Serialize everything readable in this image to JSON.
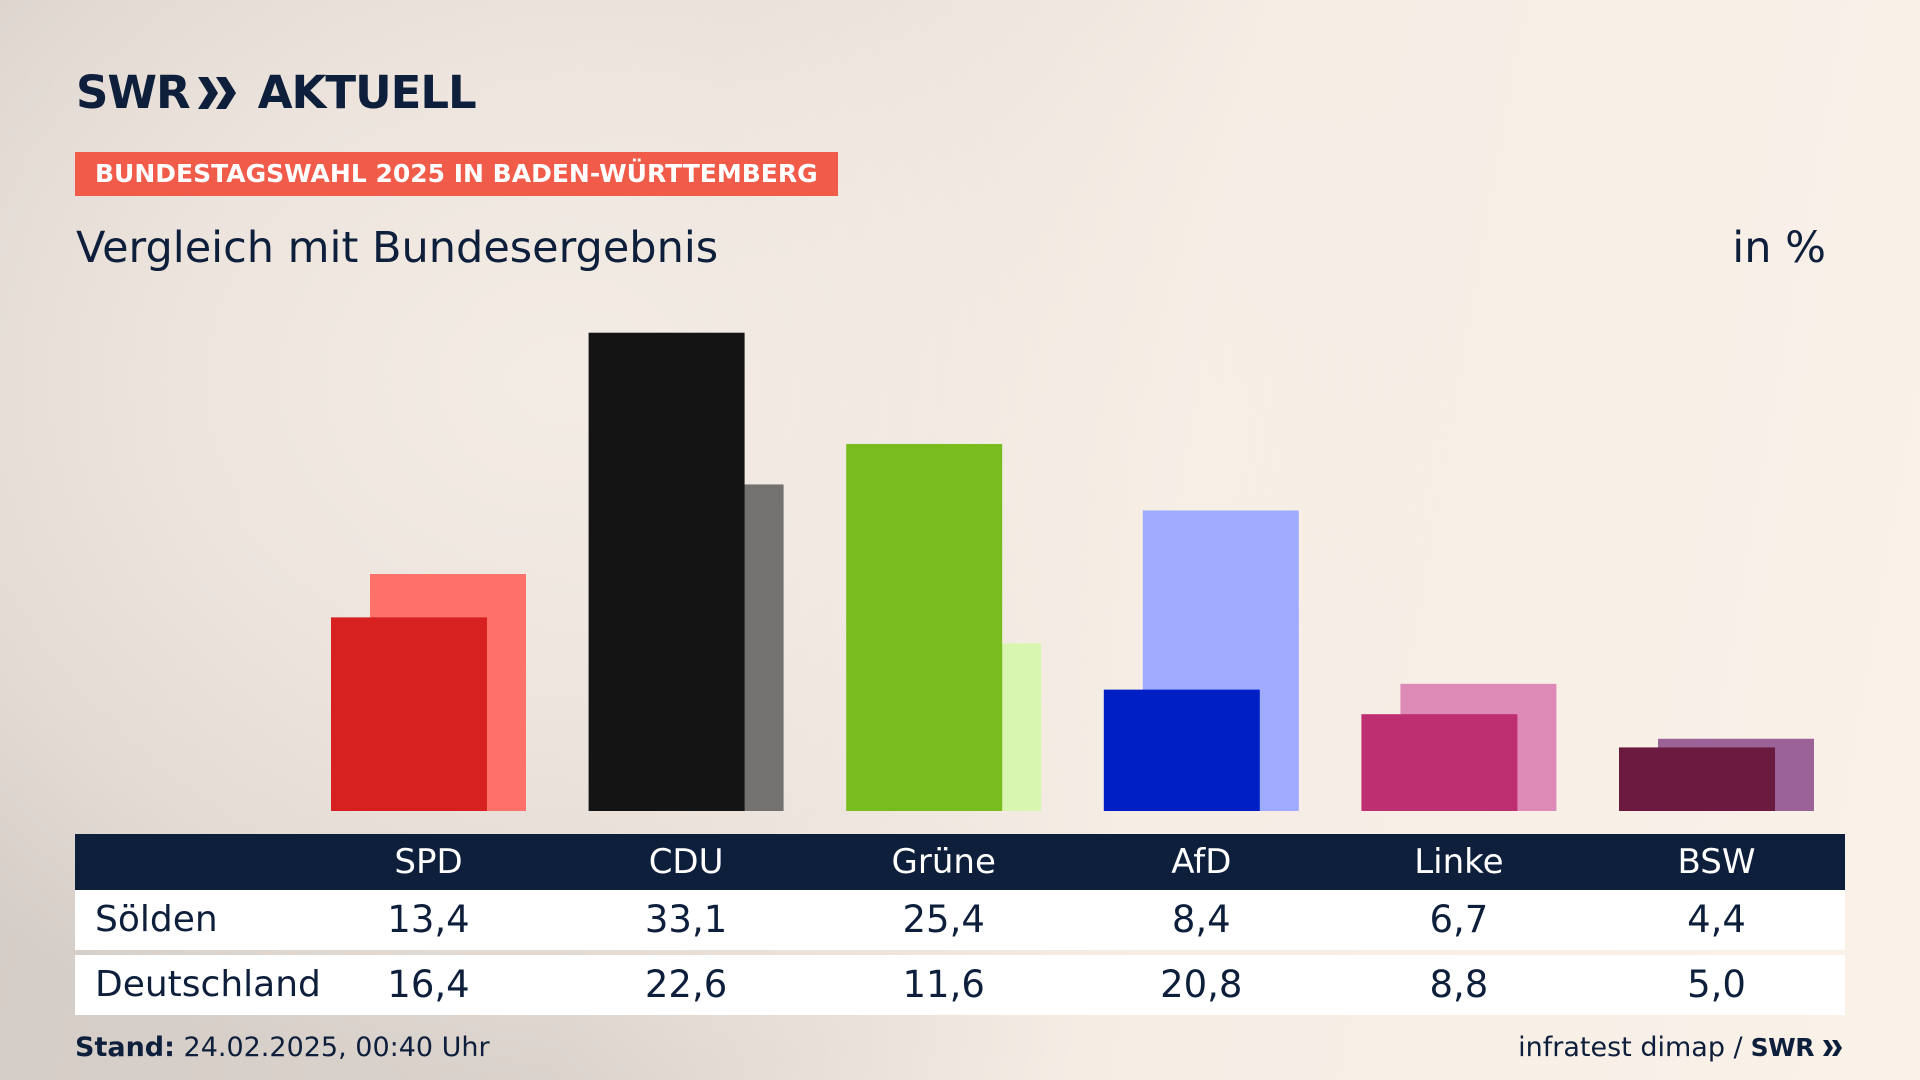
{
  "brand": {
    "logo_part1": "SWR",
    "logo_part2": "AKTUELL",
    "footer_logo": "SWR"
  },
  "header": {
    "badge": "BUNDESTAGSWAHL 2025 IN BADEN-WÜRTTEMBERG",
    "subtitle": "Vergleich mit Bundesergebnis",
    "unit": "in %"
  },
  "colors": {
    "navy": "#0e1f3c",
    "badge": "#f15b4a"
  },
  "chart_data": {
    "type": "bar",
    "title": "Vergleich mit Bundesergebnis",
    "ylabel": "in %",
    "categories": [
      "SPD",
      "CDU",
      "Grüne",
      "AfD",
      "Linke",
      "BSW"
    ],
    "series": [
      {
        "name": "Sölden",
        "values": [
          13.4,
          33.1,
          25.4,
          8.4,
          6.7,
          4.4
        ],
        "colors": [
          "#d62120",
          "#141414",
          "#78bc1e",
          "#0020c6",
          "#bd2f70",
          "#6a1b3f"
        ]
      },
      {
        "name": "Deutschland",
        "values": [
          16.4,
          22.6,
          11.6,
          20.8,
          8.8,
          5.0
        ],
        "colors": [
          "#ff7169",
          "#737271",
          "#d8f6af",
          "#9eabff",
          "#de8ab6",
          "#9b6297"
        ]
      }
    ],
    "ylim": [
      0,
      34
    ]
  },
  "table": {
    "headers": [
      "SPD",
      "CDU",
      "Grüne",
      "AfD",
      "Linke",
      "BSW"
    ],
    "rows": [
      {
        "label": "Sölden",
        "values": [
          "13,4",
          "33,1",
          "25,4",
          "8,4",
          "6,7",
          "4,4"
        ]
      },
      {
        "label": "Deutschland",
        "values": [
          "16,4",
          "22,6",
          "11,6",
          "20,8",
          "8,8",
          "5,0"
        ]
      }
    ]
  },
  "footer": {
    "stand_label": "Stand:",
    "stand_value": "24.02.2025, 00:40 Uhr",
    "source": "infratest dimap /"
  }
}
